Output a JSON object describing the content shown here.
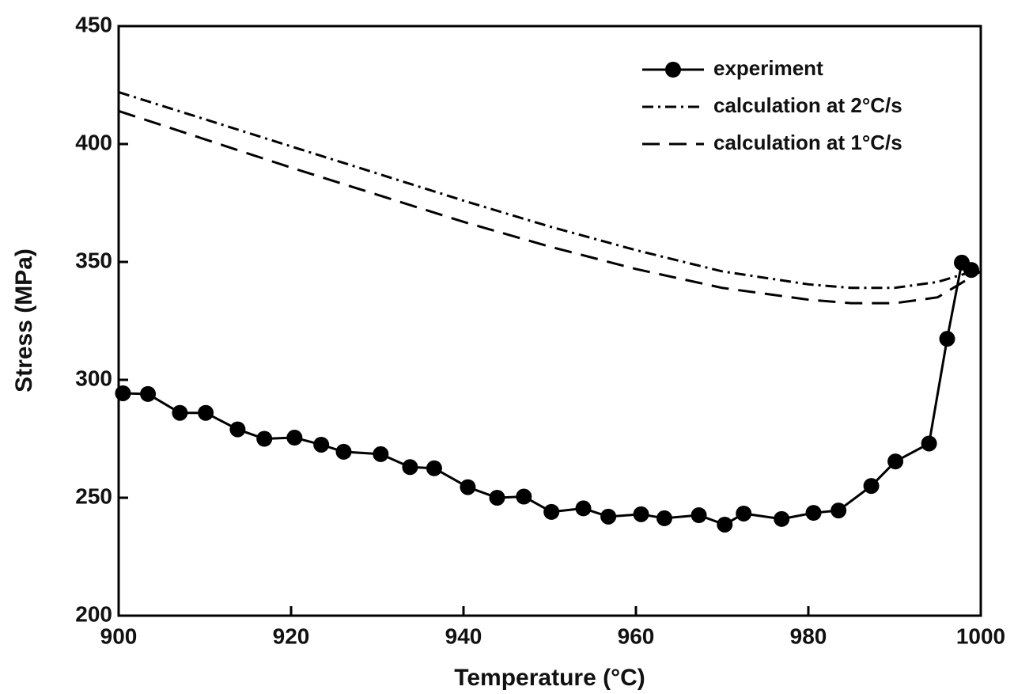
{
  "chart_data": {
    "type": "line",
    "x_label": "Temperature (°C)",
    "y_label": "Stress (MPa)",
    "xlim": [
      900,
      1000
    ],
    "xticks": [
      900,
      920,
      940,
      960,
      980,
      1000
    ],
    "ylim": [
      200,
      450
    ],
    "yticks": [
      200,
      250,
      300,
      350,
      400,
      450
    ],
    "legend": "upper right",
    "series": [
      {
        "name": "experiment",
        "color": "#000000",
        "dash": "solid",
        "marker": "circle",
        "x": [
          900.5,
          903.4,
          907.1,
          910.1,
          913.8,
          916.9,
          920.4,
          923.5,
          926.1,
          930.4,
          933.8,
          936.6,
          940.5,
          943.9,
          947.0,
          950.2,
          953.9,
          956.8,
          960.6,
          963.3,
          967.3,
          970.3,
          972.5,
          976.9,
          980.6,
          983.5,
          987.3,
          990.1,
          994.0,
          996.1,
          997.8,
          998.9
        ],
        "values": [
          294.3,
          294,
          286,
          286,
          279,
          275,
          275.5,
          272.5,
          269.5,
          268.5,
          263,
          262.5,
          254.5,
          250,
          250.5,
          244,
          245.5,
          242,
          243,
          241.3,
          242.6,
          238.6,
          243.3,
          241,
          243.6,
          244.6,
          255,
          265.4,
          273,
          317.4,
          349.7,
          346.6
        ]
      },
      {
        "name": "calculation at 2°C/s",
        "color": "#000000",
        "dash": "dashdot",
        "marker": "none",
        "x": [
          900,
          910,
          920,
          930,
          940,
          950,
          960,
          970,
          980,
          985,
          990,
          995,
          1000
        ],
        "values": [
          422,
          410.5,
          399,
          387.5,
          376,
          365,
          355,
          346,
          340.5,
          339,
          339,
          341.5,
          347
        ]
      },
      {
        "name": "calculation at 1°C/s",
        "color": "#000000",
        "dash": "dash",
        "marker": "none",
        "x": [
          900,
          910,
          920,
          930,
          940,
          950,
          960,
          970,
          980,
          985,
          990,
          995,
          1000
        ],
        "values": [
          414,
          402,
          390,
          378.5,
          367,
          356.5,
          347,
          339,
          334,
          332.5,
          332.5,
          335,
          346
        ]
      }
    ]
  }
}
